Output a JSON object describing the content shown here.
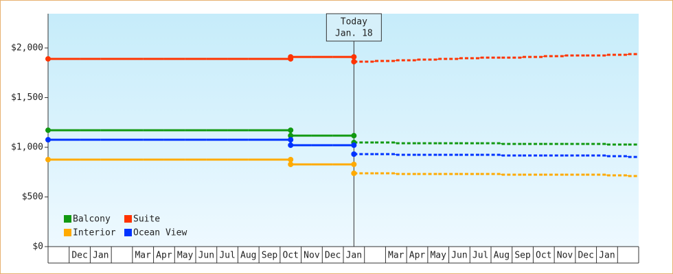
{
  "chart_data": {
    "type": "step-line",
    "categories": [
      null,
      "Dec",
      "Jan",
      null,
      "Mar",
      "Apr",
      "May",
      "Jun",
      "Jul",
      "Aug",
      "Sep",
      "Oct",
      "Nov",
      "Dec",
      "Jan",
      null,
      "Mar",
      "Apr",
      "May",
      "Jun",
      "Jul",
      "Aug",
      "Sep",
      "Oct",
      "Nov",
      "Dec",
      "Jan",
      null
    ],
    "ylim": [
      0,
      2345
    ],
    "yticks": [
      {
        "value": 0,
        "label": "$0"
      },
      {
        "value": 500,
        "label": "$500"
      },
      {
        "value": 1000,
        "label": "$1,000"
      },
      {
        "value": 1500,
        "label": "$1,500"
      },
      {
        "value": 2000,
        "label": "$2,000"
      }
    ],
    "today_title": "Today",
    "today_date": "Jan. 18",
    "today_index": 14,
    "legend": "lower left",
    "series": [
      {
        "name": "Balcony",
        "color": "#119911",
        "values": [
          1172,
          1172,
          1172,
          1172,
          1172,
          1172,
          1172,
          1172,
          1172,
          1172,
          1172,
          1117,
          1117,
          1117,
          1117,
          null,
          null,
          null,
          null,
          null,
          null,
          null,
          null,
          null,
          null,
          null,
          null,
          null
        ],
        "forecast": [
          null,
          null,
          null,
          null,
          null,
          null,
          null,
          null,
          null,
          null,
          null,
          null,
          null,
          null,
          1048,
          1048,
          1041,
          1041,
          1041,
          1041,
          1041,
          1034,
          1034,
          1034,
          1034,
          1034,
          1028,
          1028
        ]
      },
      {
        "name": "Suite",
        "color": "#ff3300",
        "values": [
          1890,
          1890,
          1890,
          1890,
          1890,
          1890,
          1890,
          1890,
          1890,
          1890,
          1890,
          1910,
          1910,
          1910,
          1910,
          null,
          null,
          null,
          null,
          null,
          null,
          null,
          null,
          null,
          null,
          null,
          null,
          null
        ],
        "forecast": [
          null,
          null,
          null,
          null,
          null,
          null,
          null,
          null,
          null,
          null,
          null,
          null,
          null,
          null,
          1862,
          1869,
          1876,
          1883,
          1890,
          1897,
          1903,
          1903,
          1910,
          1917,
          1924,
          1924,
          1931,
          1938
        ]
      },
      {
        "name": "Interior",
        "color": "#ffaa00",
        "values": [
          876,
          876,
          876,
          876,
          876,
          876,
          876,
          876,
          876,
          876,
          876,
          828,
          828,
          828,
          828,
          null,
          null,
          null,
          null,
          null,
          null,
          null,
          null,
          null,
          null,
          null,
          null,
          null
        ],
        "forecast": [
          null,
          null,
          null,
          null,
          null,
          null,
          null,
          null,
          null,
          null,
          null,
          null,
          null,
          null,
          738,
          738,
          731,
          731,
          731,
          731,
          731,
          724,
          724,
          724,
          724,
          724,
          717,
          710
        ]
      },
      {
        "name": "Ocean View",
        "color": "#0033ff",
        "values": [
          1076,
          1076,
          1076,
          1076,
          1076,
          1076,
          1076,
          1076,
          1076,
          1076,
          1076,
          1021,
          1021,
          1021,
          1021,
          null,
          null,
          null,
          null,
          null,
          null,
          null,
          null,
          null,
          null,
          null,
          null,
          null
        ],
        "forecast": [
          null,
          null,
          null,
          null,
          null,
          null,
          null,
          null,
          null,
          null,
          null,
          null,
          null,
          null,
          931,
          931,
          924,
          924,
          924,
          924,
          924,
          917,
          917,
          917,
          917,
          917,
          910,
          903
        ]
      }
    ]
  }
}
